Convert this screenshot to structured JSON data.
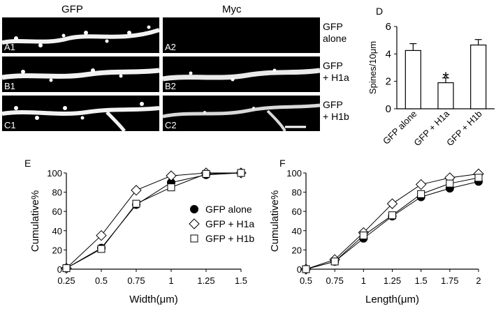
{
  "micrographs": {
    "columns": [
      "GFP",
      "Myc"
    ],
    "rows": [
      {
        "tags": [
          "A1",
          "A2"
        ],
        "label_line1": "GFP",
        "label_line2": "alone",
        "myc_signal": 0
      },
      {
        "tags": [
          "B1",
          "B2"
        ],
        "label_line1": "GFP",
        "label_line2": "+ H1a",
        "myc_signal": 1
      },
      {
        "tags": [
          "C1",
          "C2"
        ],
        "label_line1": "GFP",
        "label_line2": "+ H1b",
        "myc_signal": 0.8
      }
    ]
  },
  "panel_letters": {
    "d": "D",
    "e": "E",
    "f": "F"
  },
  "chart_data": [
    {
      "id": "D",
      "type": "bar",
      "ylabel": "Spines/10μm",
      "ylim": [
        0,
        6
      ],
      "yticks": [
        0,
        2,
        4,
        6
      ],
      "categories": [
        "GFP alone",
        "GFP + H1a",
        "GFP + H1b"
      ],
      "values": [
        4.25,
        1.9,
        4.65
      ],
      "errors": [
        0.5,
        0.35,
        0.4
      ],
      "significance": [
        "",
        "*",
        ""
      ],
      "bar_fill": "#ffffff"
    },
    {
      "id": "E",
      "type": "line",
      "xlabel": "Width(μm)",
      "ylabel": "Cumulative%",
      "x": [
        0.25,
        0.5,
        0.75,
        1,
        1.25,
        1.5
      ],
      "xticks": [
        "0.25",
        "0.5",
        "0.75",
        "1",
        "1.25",
        "1.5"
      ],
      "ylim": [
        0,
        100
      ],
      "yticks": [
        0,
        20,
        40,
        60,
        80,
        100
      ],
      "series": [
        {
          "name": "GFP alone",
          "marker": "filled-circle",
          "values": [
            1,
            22,
            67,
            90,
            98,
            100
          ]
        },
        {
          "name": "GFP + H1a",
          "marker": "open-diamond",
          "values": [
            1,
            35,
            82,
            97,
            100,
            100
          ]
        },
        {
          "name": "GFP + H1b",
          "marker": "open-square",
          "values": [
            1,
            21,
            68,
            85,
            99,
            100
          ]
        }
      ],
      "legend": "center-right"
    },
    {
      "id": "F",
      "type": "line",
      "xlabel": "Length(μm)",
      "ylabel": "Cumulative%",
      "x": [
        0.5,
        0.75,
        1,
        1.25,
        1.5,
        1.75,
        2
      ],
      "xticks": [
        "0.5",
        "0.75",
        "1",
        "1.25",
        "1.5",
        "1.75",
        "2"
      ],
      "ylim": [
        0,
        100
      ],
      "yticks": [
        0,
        20,
        40,
        60,
        80,
        100
      ],
      "series": [
        {
          "name": "GFP alone",
          "marker": "filled-circle",
          "values": [
            0,
            8,
            32,
            55,
            75,
            84,
            91
          ]
        },
        {
          "name": "GFP + H1a",
          "marker": "open-diamond",
          "values": [
            0,
            10,
            38,
            68,
            88,
            95,
            99
          ]
        },
        {
          "name": "GFP + H1b",
          "marker": "open-square",
          "values": [
            0,
            8,
            35,
            56,
            78,
            89,
            95
          ]
        }
      ]
    }
  ]
}
